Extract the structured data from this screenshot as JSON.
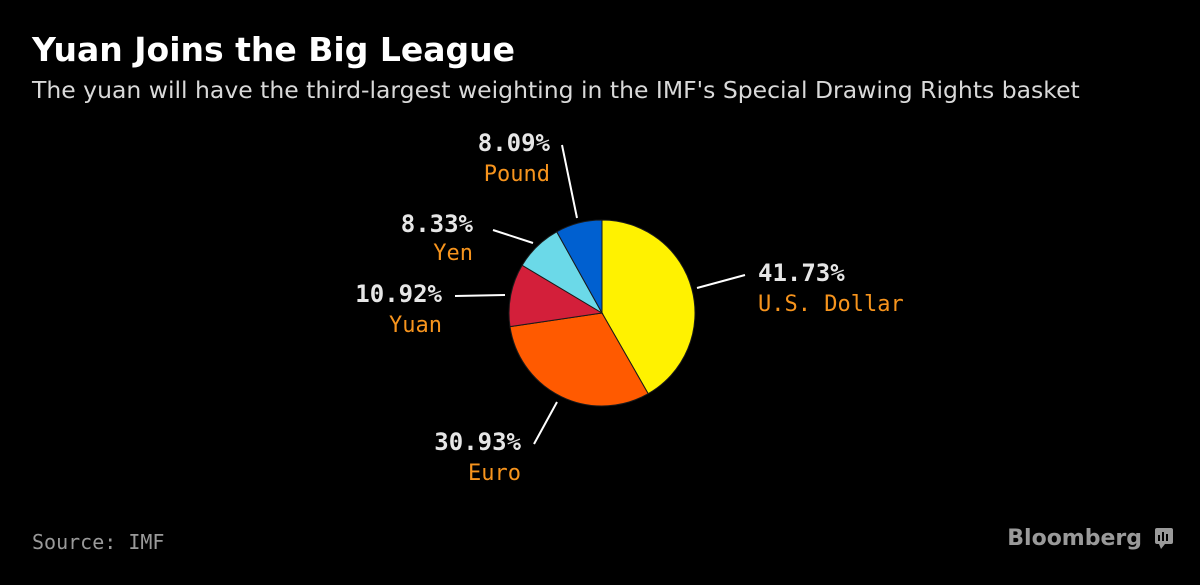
{
  "header": {
    "title": "Yuan Joins the Big League",
    "subtitle": "The yuan will have the third-largest weighting in the IMF's Special Drawing Rights basket"
  },
  "footer": {
    "source": "Source: IMF",
    "brand": "Bloomberg",
    "brand_icon": "bloomberg-terminal-icon"
  },
  "colors": {
    "background": "#000000",
    "label_accent": "#f7941d",
    "leader_line": "#ffffff"
  },
  "chart_data": {
    "type": "pie",
    "title": "Yuan Joins the Big League",
    "subtitle": "The yuan will have the third-largest weighting in the IMF's Special Drawing Rights basket",
    "start": "12 o'clock",
    "direction": "clockwise",
    "slices": [
      {
        "label": "U.S. Dollar",
        "value": 41.73,
        "value_label": "41.73%",
        "color": "#fff200"
      },
      {
        "label": "Euro",
        "value": 30.93,
        "value_label": "30.93%",
        "color": "#ff5a00"
      },
      {
        "label": "Yuan",
        "value": 10.92,
        "value_label": "10.92%",
        "color": "#d31f3a"
      },
      {
        "label": "Yen",
        "value": 8.33,
        "value_label": "8.33%",
        "color": "#6bd9e8"
      },
      {
        "label": "Pound",
        "value": 8.09,
        "value_label": "8.09%",
        "color": "#0060d0"
      }
    ]
  }
}
